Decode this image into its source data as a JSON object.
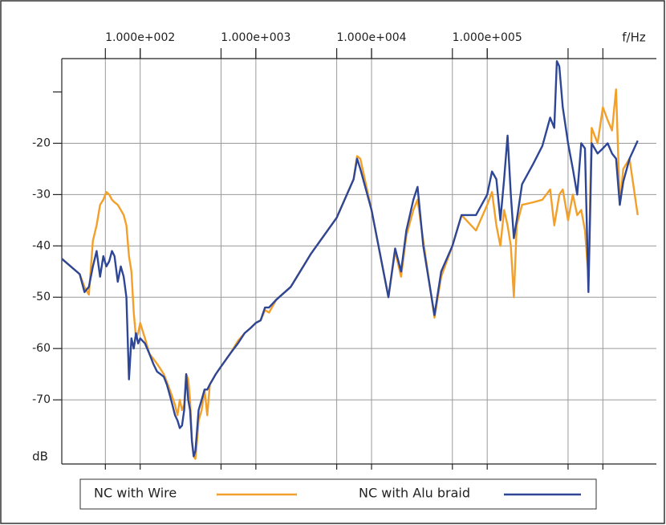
{
  "chart_data": {
    "type": "line",
    "x_scale": "log",
    "grid": true,
    "legend": "bottom",
    "x_label": "f/Hz",
    "y_label": "dB",
    "xlim": [
      21,
      2900000
    ],
    "ylim": [
      -82.5,
      -3.5
    ],
    "xticks": [
      {
        "value": 100,
        "label": "1.000e+002"
      },
      {
        "value": 1000,
        "label": "1.000e+003"
      },
      {
        "value": 10000,
        "label": "1.000e+004"
      },
      {
        "value": 100000,
        "label": "1.000e+005"
      }
    ],
    "xgrid": [
      50,
      100,
      500,
      1000,
      5000,
      10000,
      50000,
      100000,
      500000,
      1000000
    ],
    "yticks": [
      -70,
      -60,
      -50,
      -40,
      -30,
      -20
    ],
    "yticks_unlabeled": [
      -10
    ],
    "x": [
      21,
      30,
      33,
      36,
      39,
      42,
      45,
      48,
      51,
      54,
      57,
      60,
      64,
      68,
      72,
      76,
      80,
      84,
      88,
      92,
      96,
      100,
      110,
      120,
      130,
      140,
      150,
      160,
      170,
      180,
      190,
      200,
      210,
      220,
      230,
      240,
      250,
      260,
      270,
      280,
      290,
      300,
      310,
      320,
      340,
      360,
      380,
      400,
      450,
      500,
      600,
      700,
      800,
      900,
      1000,
      1100,
      1200,
      1300,
      1500,
      2000,
      3000,
      5000,
      7000,
      7500,
      8000,
      10000,
      14000,
      16000,
      18000,
      20000,
      23000,
      25000,
      28000,
      35000,
      40000,
      50000,
      60000,
      80000,
      100000,
      110000,
      120000,
      130000,
      140000,
      150000,
      160000,
      170000,
      180000,
      200000,
      250000,
      300000,
      350000,
      380000,
      400000,
      420000,
      450000,
      500000,
      550000,
      600000,
      650000,
      700000,
      750000,
      800000,
      900000,
      1000000,
      1100000,
      1200000,
      1300000,
      1400000,
      1500000,
      1700000,
      2000000
    ],
    "series": [
      {
        "name": "NC with Wire",
        "color": "#f2a02a",
        "values": [
          -42.5,
          -45.5,
          -48,
          -49.5,
          -39,
          -36,
          -32,
          -31,
          -29.5,
          -30,
          -31,
          -31.5,
          -32,
          -33,
          -34,
          -36,
          -42,
          -45,
          -53,
          -58,
          -57,
          -55,
          -58,
          -61,
          -62,
          -63,
          -64,
          -65,
          -66.5,
          -68,
          -69.5,
          -71,
          -73,
          -70,
          -72,
          -71,
          -65,
          -66,
          -70,
          -78,
          -81,
          -81.5,
          -78,
          -74,
          -72,
          -68,
          -73,
          -67,
          -65,
          -63.5,
          -61,
          -58.5,
          -57,
          -56,
          -55,
          -54.5,
          -52.5,
          -53,
          -50.5,
          -48,
          -41.5,
          -34.5,
          -27,
          -22.5,
          -23,
          -33,
          -50,
          -41,
          -46,
          -38,
          -33,
          -31,
          -39,
          -54,
          -46,
          -40,
          -34,
          -37,
          -32,
          -29.5,
          -36,
          -40,
          -33,
          -36,
          -40,
          -50,
          -36,
          -32,
          -31.5,
          -31,
          -29,
          -36,
          -33,
          -30,
          -29,
          -35,
          -30,
          -34,
          -33,
          -37,
          -46,
          -17,
          -20,
          -13,
          -15.5,
          -17.5,
          -9.5,
          -32,
          -25,
          -23,
          -34
        ]
      },
      {
        "name": "NC with Alu braid",
        "color": "#2e4696",
        "values": [
          -42.5,
          -45.5,
          -49,
          -48,
          -44,
          -41,
          -46,
          -42,
          -44,
          -43,
          -41,
          -42,
          -47,
          -44,
          -46,
          -50,
          -66,
          -58,
          -60,
          -57,
          -59,
          -58,
          -59,
          -61,
          -63,
          -64.5,
          -65,
          -65.5,
          -67,
          -69,
          -71,
          -73,
          -74,
          -75.5,
          -75,
          -72,
          -65,
          -70,
          -72,
          -78,
          -81,
          -80,
          -76,
          -72,
          -70,
          -68,
          -68,
          -67,
          -65,
          -63.5,
          -61,
          -59,
          -57,
          -56,
          -55,
          -54.5,
          -52,
          -52,
          -50.5,
          -48,
          -41.5,
          -34.5,
          -27,
          -23,
          -25,
          -33,
          -50,
          -40.5,
          -45,
          -37,
          -31,
          -28.5,
          -40,
          -53.5,
          -45,
          -40,
          -34,
          -34,
          -30,
          -25.5,
          -27,
          -35,
          -27,
          -18.5,
          -30,
          -38.5,
          -35,
          -28,
          -24,
          -20.5,
          -15,
          -17,
          -4,
          -5,
          -13,
          -20,
          -25,
          -30,
          -20,
          -21,
          -49,
          -20,
          -22,
          -21,
          -20,
          -22,
          -23,
          -32,
          -27.5,
          -23,
          -19.5
        ]
      }
    ]
  }
}
